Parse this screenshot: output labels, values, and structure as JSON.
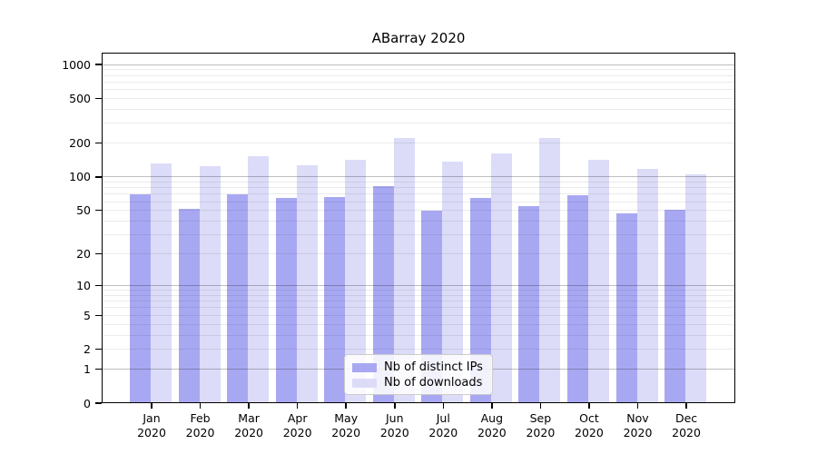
{
  "title": "ABarray 2020",
  "chart_data": {
    "type": "bar",
    "title": "ABarray 2020",
    "categories": [
      "Jan 2020",
      "Feb 2020",
      "Mar 2020",
      "Apr 2020",
      "May 2020",
      "Jun 2020",
      "Jul 2020",
      "Aug 2020",
      "Sep 2020",
      "Oct 2020",
      "Nov 2020",
      "Dec 2020"
    ],
    "series": [
      {
        "name": "Nb of distinct IPs",
        "color": "#a8a8f2",
        "values": [
          70,
          52,
          70,
          65,
          66,
          82,
          50,
          65,
          55,
          68,
          47,
          51
        ]
      },
      {
        "name": "Nb of downloads",
        "color": "#dcdcf8",
        "values": [
          131,
          124,
          152,
          127,
          141,
          223,
          138,
          163,
          223,
          143,
          117,
          105
        ]
      }
    ],
    "xlabel": "",
    "ylabel": "",
    "yscale": "log1p",
    "y_ticks": [
      0,
      1,
      2,
      5,
      10,
      20,
      50,
      100,
      200,
      500,
      1000
    ],
    "ylim": [
      0,
      1270
    ],
    "grid": true,
    "legend_position": "lower center"
  },
  "legend": {
    "items": [
      {
        "label": "Nb of distinct IPs",
        "color": "#a8a8f2"
      },
      {
        "label": "Nb of downloads",
        "color": "#dcdcf8"
      }
    ]
  }
}
